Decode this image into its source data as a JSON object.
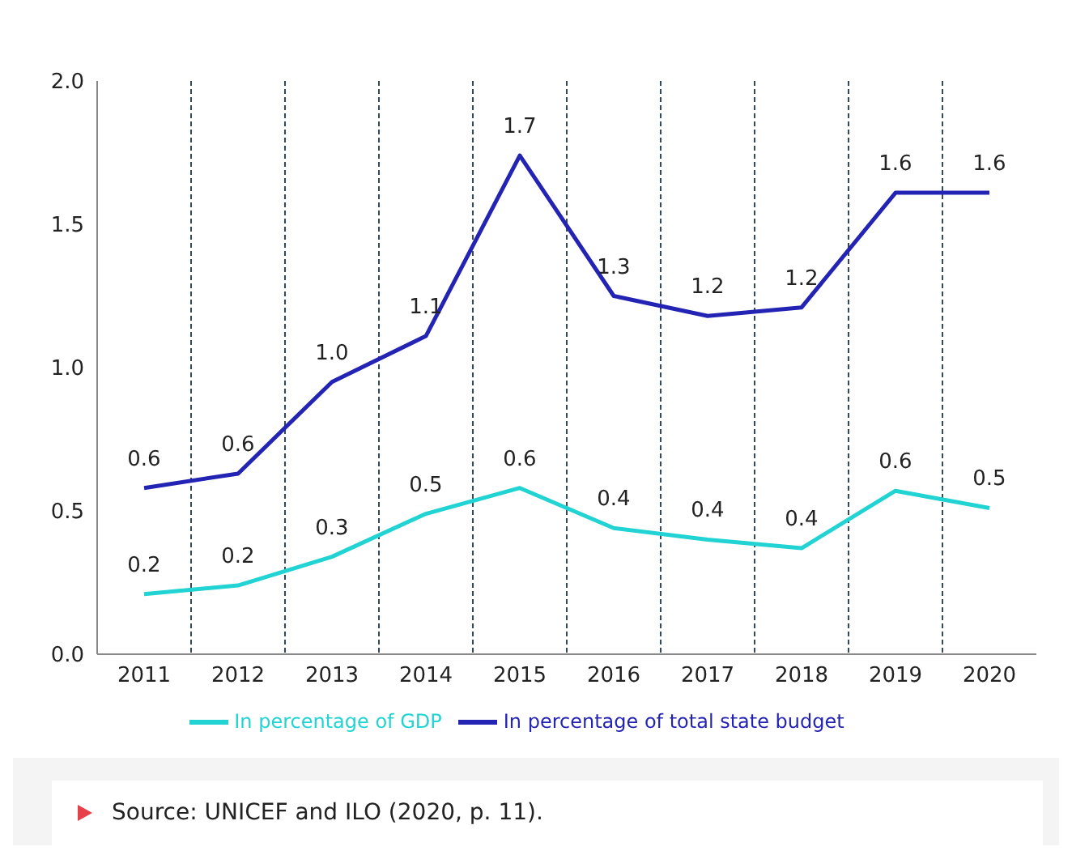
{
  "chart_data": {
    "type": "line",
    "categories": [
      "2011",
      "2012",
      "2013",
      "2014",
      "2015",
      "2016",
      "2017",
      "2018",
      "2019",
      "2020"
    ],
    "series": [
      {
        "name": "In percentage of GDP",
        "color": "#22d3d3",
        "values": [
          0.21,
          0.24,
          0.34,
          0.49,
          0.58,
          0.44,
          0.4,
          0.37,
          0.57,
          0.51
        ],
        "value_labels": [
          "0.2",
          "0.2",
          "0.3",
          "0.5",
          "0.6",
          "0.4",
          "0.4",
          "0.4",
          "0.6",
          "0.5"
        ]
      },
      {
        "name": "In percentage of total state budget",
        "color": "#2424b4",
        "values": [
          0.58,
          0.63,
          0.95,
          1.11,
          1.74,
          1.25,
          1.18,
          1.21,
          1.61,
          1.61
        ],
        "value_labels": [
          "0.6",
          "0.6",
          "1.0",
          "1.1",
          "1.7",
          "1.3",
          "1.2",
          "1.2",
          "1.6",
          "1.6"
        ]
      }
    ],
    "ylim": [
      0,
      2
    ],
    "yticks": [
      {
        "value": 0,
        "label": "0.0"
      },
      {
        "value": 0.5,
        "label": "0.5"
      },
      {
        "value": 1,
        "label": "1.0"
      },
      {
        "value": 1.5,
        "label": "1.5"
      },
      {
        "value": 2,
        "label": "2.0"
      }
    ],
    "grid": "x",
    "legend": "bottom",
    "marker": "none",
    "line_style": "solid",
    "annotations": [
      "Source: UNICEF and ILO (2020, p. 11)."
    ]
  }
}
